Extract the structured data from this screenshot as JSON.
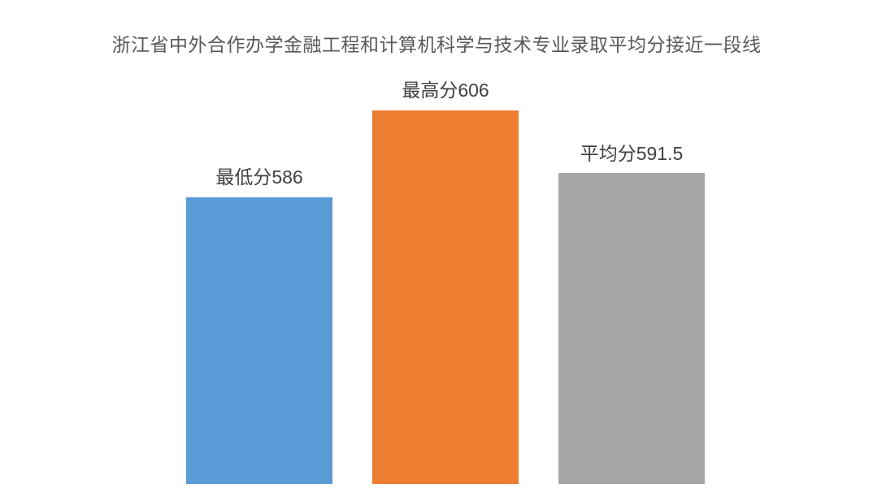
{
  "chart_data": {
    "type": "bar",
    "title": "浙江省中外合作办学金融工程和计算机科学与技术专业录取平均分接近一段线",
    "categories": [
      "最低分",
      "最高分",
      "平均分"
    ],
    "values": [
      586,
      606,
      591.5
    ],
    "data_labels": [
      "最低分586",
      "最高分606",
      "平均分591.5"
    ],
    "colors": [
      "#5B9BD5",
      "#ED7D31",
      "#A6A6A6"
    ],
    "ylim": [
      520,
      620
    ],
    "xlabel": "",
    "ylabel": "",
    "grid": false,
    "legend": "none",
    "axes_visible": false,
    "background": "#FFFFFF",
    "title_color": "#595959",
    "label_color": "#404040"
  }
}
